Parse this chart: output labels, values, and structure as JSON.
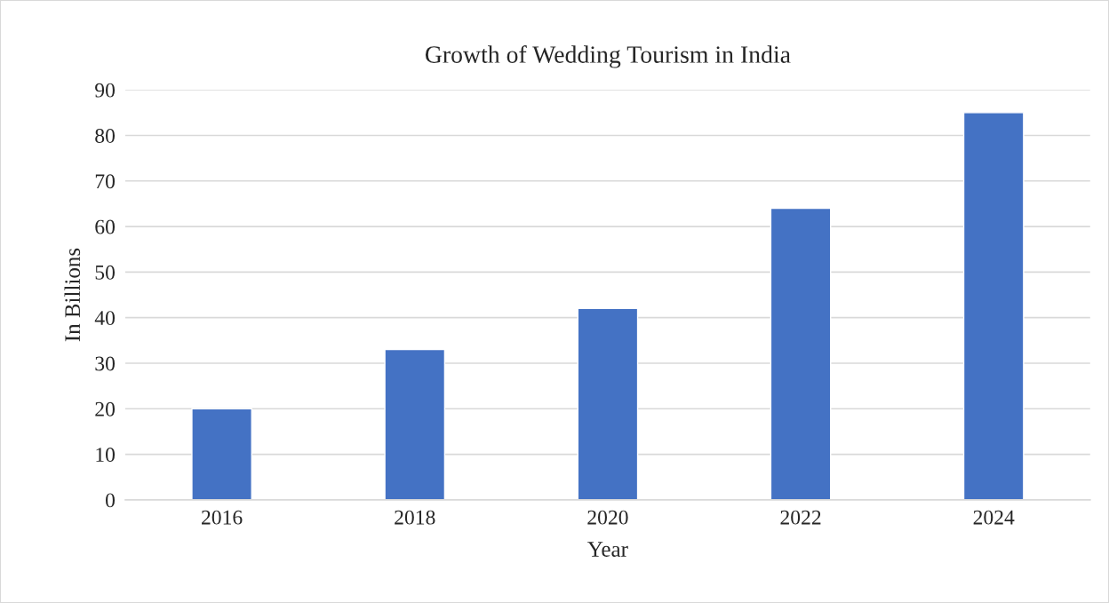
{
  "chart_data": {
    "type": "bar",
    "title": "Growth of Wedding Tourism in India",
    "xlabel": "Year",
    "ylabel": "In Billions",
    "categories": [
      "2016",
      "2018",
      "2020",
      "2022",
      "2024"
    ],
    "values": [
      20,
      33,
      42,
      64,
      85
    ],
    "color": "#4472c4",
    "ylim": [
      0,
      90
    ],
    "yticks": [
      0,
      10,
      20,
      30,
      40,
      50,
      60,
      70,
      80,
      90
    ],
    "grid": "y",
    "legend": false
  }
}
